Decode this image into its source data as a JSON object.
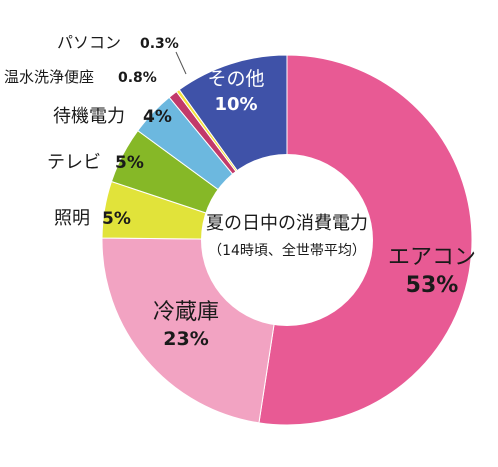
{
  "chart_data": {
    "type": "pie",
    "center_title": "夏の日中の消費電力",
    "center_subtitle": "（14時頃、全世帯平均）",
    "slices": [
      {
        "label": "エアコン",
        "value": 53,
        "value_label": "53%",
        "color": "#e85a94"
      },
      {
        "label": "冷蔵庫",
        "value": 23,
        "value_label": "23%",
        "color": "#f2a3c2"
      },
      {
        "label": "照明",
        "value": 5,
        "value_label": "5%",
        "color": "#e1e33a"
      },
      {
        "label": "テレビ",
        "value": 5,
        "value_label": "5%",
        "color": "#86b827"
      },
      {
        "label": "待機電力",
        "value": 4,
        "value_label": "4%",
        "color": "#6cb8df"
      },
      {
        "label": "温水洗浄便座",
        "value": 0.8,
        "value_label": "0.8%",
        "color": "#c23a6a"
      },
      {
        "label": "パソコン",
        "value": 0.3,
        "value_label": "0.3%",
        "color": "#f2e23a"
      },
      {
        "label": "その他",
        "value": 10,
        "value_label": "10%",
        "color": "#3f52a8"
      }
    ]
  }
}
